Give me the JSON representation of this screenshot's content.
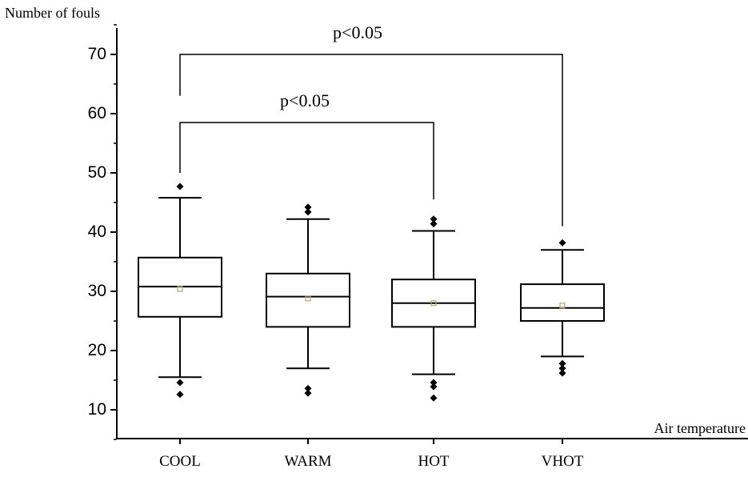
{
  "chart_data": {
    "type": "box",
    "ylabel": "Number of fouls",
    "xlabel": "Air temperature",
    "ylim": [
      5,
      75
    ],
    "yticks": [
      10,
      20,
      30,
      40,
      50,
      60,
      70
    ],
    "categories": [
      "COOL",
      "WARM",
      "HOT",
      "VHOT"
    ],
    "boxes": [
      {
        "category": "COOL",
        "whisker_low": 15.5,
        "q1": 25.7,
        "median": 30.8,
        "q3": 35.7,
        "whisker_high": 45.8,
        "mean": 30.4,
        "outliers": [
          12.6,
          14.6,
          47.7
        ]
      },
      {
        "category": "WARM",
        "whisker_low": 17.0,
        "q1": 24.0,
        "median": 29.1,
        "q3": 33.0,
        "whisker_high": 42.2,
        "mean": 28.8,
        "outliers": [
          12.8,
          13.6,
          43.4,
          44.2
        ]
      },
      {
        "category": "HOT",
        "whisker_low": 16.0,
        "q1": 24.0,
        "median": 28.0,
        "q3": 32.0,
        "whisker_high": 40.2,
        "mean": 28.0,
        "outliers": [
          12.0,
          13.9,
          14.6,
          41.4,
          42.2
        ]
      },
      {
        "category": "VHOT",
        "whisker_low": 19.0,
        "q1": 25.0,
        "median": 27.2,
        "q3": 31.2,
        "whisker_high": 37.0,
        "mean": 27.6,
        "outliers": [
          16.2,
          17.0,
          17.8,
          38.2
        ]
      }
    ],
    "significance": [
      {
        "from": "COOL",
        "to": "VHOT",
        "label": "p<0.05",
        "left_end": 63,
        "right_end": 41,
        "bar_y": 70
      },
      {
        "from": "COOL",
        "to": "HOT",
        "label": "p<0.05",
        "left_end": 50,
        "right_end": 45.5,
        "bar_y": 58.5
      }
    ],
    "colors": {
      "axis": "#000000",
      "box": "#000000",
      "outlier": "#000000",
      "mean_marker": "#b5a66a"
    }
  }
}
